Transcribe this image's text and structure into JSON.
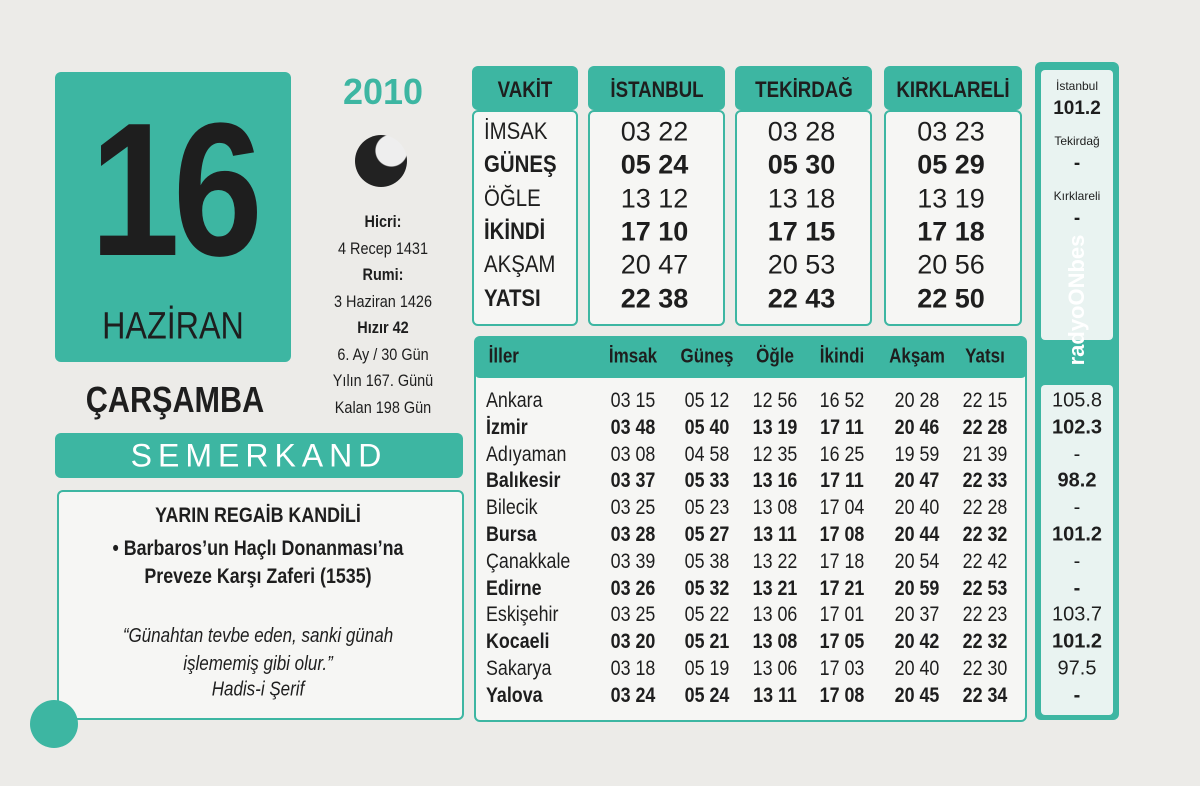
{
  "date": {
    "day": "16",
    "month": "HAZİRAN",
    "year": "2010",
    "weekday": "ÇARŞAMBA"
  },
  "info": [
    "Hicri:",
    "4 Recep 1431",
    "Rumi:",
    "3 Haziran 1426",
    "Hızır 42",
    "6. Ay / 30 Gün",
    "Yılın 167. Günü",
    "Kalan 198 Gün"
  ],
  "brand": "SEMERKAND",
  "note": {
    "title": "YARIN REGAİB KANDİLİ",
    "bullet": "• Barbaros’un Haçlı Donanması’na Preveze Karşı Zaferi (1535)",
    "quote": "“Günahtan tevbe eden, sanki günah işlememiş gibi olur.”",
    "source": "Hadis-i Şerif"
  },
  "times": {
    "header": [
      "VAKİT",
      "İSTANBUL",
      "TEKİRDAĞ",
      "KIRKLARELİ"
    ],
    "rows": [
      [
        "İMSAK",
        "03 22",
        "03 28",
        "03 23"
      ],
      [
        "GÜNEŞ",
        "05 24",
        "05 30",
        "05 29"
      ],
      [
        "ÖĞLE",
        "13 12",
        "13 18",
        "13 19"
      ],
      [
        "İKİNDİ",
        "17 10",
        "17 15",
        "17 18"
      ],
      [
        "AKŞAM",
        "20 47",
        "20 53",
        "20 56"
      ],
      [
        "YATSI",
        "22 38",
        "22 43",
        "22 50"
      ]
    ]
  },
  "cities": {
    "header": [
      "İller",
      "İmsak",
      "Güneş",
      "Öğle",
      "İkindi",
      "Akşam",
      "Yatsı"
    ],
    "rows": [
      [
        "Ankara",
        "03 15",
        "05 12",
        "12 56",
        "16 52",
        "20 28",
        "22 15"
      ],
      [
        "İzmir",
        "03 48",
        "05 40",
        "13 19",
        "17 11",
        "20 46",
        "22 28"
      ],
      [
        "Adıyaman",
        "03 08",
        "04 58",
        "12 35",
        "16 25",
        "19 59",
        "21 39"
      ],
      [
        "Balıkesir",
        "03 37",
        "05 33",
        "13 16",
        "17 11",
        "20 47",
        "22 33"
      ],
      [
        "Bilecik",
        "03 25",
        "05 23",
        "13 08",
        "17 04",
        "20 40",
        "22 28"
      ],
      [
        "Bursa",
        "03 28",
        "05 27",
        "13 11",
        "17 08",
        "20 44",
        "22 32"
      ],
      [
        "Çanakkale",
        "03 39",
        "05 38",
        "13 22",
        "17 18",
        "20 54",
        "22 42"
      ],
      [
        "Edirne",
        "03 26",
        "05 32",
        "13 21",
        "17 21",
        "20 59",
        "22 53"
      ],
      [
        "Eskişehir",
        "03 25",
        "05 22",
        "13 06",
        "17 01",
        "20 37",
        "22 23"
      ],
      [
        "Kocaeli",
        "03 20",
        "05 21",
        "13 08",
        "17 05",
        "20 42",
        "22 32"
      ],
      [
        "Sakarya",
        "03 18",
        "05 19",
        "13 06",
        "17 03",
        "20 40",
        "22 30"
      ],
      [
        "Yalova",
        "03 24",
        "05 24",
        "13 11",
        "17 08",
        "20 45",
        "22 34"
      ]
    ]
  },
  "radio": {
    "stations": [
      {
        "city": "İstanbul",
        "freq": "101.2"
      },
      {
        "city": "Tekirdağ",
        "freq": "-"
      },
      {
        "city": "Kırklareli",
        "freq": "-"
      }
    ],
    "logo": "radyoONbes",
    "freqs": [
      "105.8",
      "102.3",
      "-",
      "98.2",
      "-",
      "101.2",
      "-",
      "-",
      "103.7",
      "101.2",
      "97.5",
      "-"
    ]
  }
}
